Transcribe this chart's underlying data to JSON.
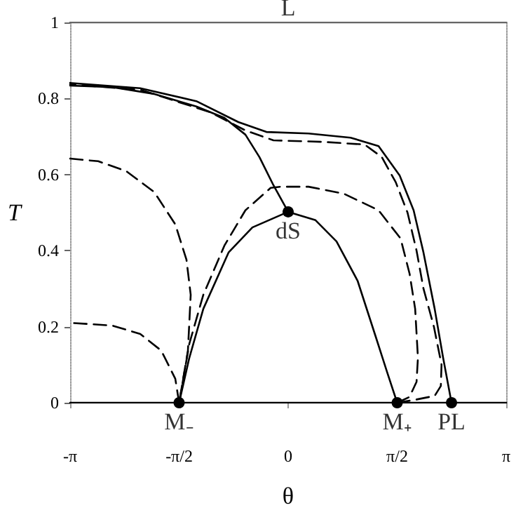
{
  "chart_data": {
    "type": "line",
    "xlabel": "θ",
    "ylabel": "T",
    "xlim": [
      -3.1416,
      3.1416
    ],
    "ylim": [
      0,
      1
    ],
    "xticks": [
      {
        "value": -3.1416,
        "label": "-π"
      },
      {
        "value": -1.5708,
        "label": "-π/2"
      },
      0,
      {
        "value": 1.5708,
        "label": "π/2"
      },
      {
        "value": 3.1416,
        "label": "π"
      }
    ],
    "yticks": [
      0,
      0.2,
      0.4,
      0.6,
      0.8,
      1
    ],
    "grid": false,
    "marker": "none",
    "line_style": "solid",
    "series": [
      {
        "color": "#666666",
        "x": [
          -3.1416,
          3.1416
        ],
        "values": [
          1,
          1
        ]
      },
      {
        "color": "#000000",
        "x": [
          -3.1416,
          3.1416
        ],
        "values": [
          0,
          0
        ]
      },
      {
        "color": "#000000",
        "x": [
          -1.571,
          -1.424,
          -1.222,
          -0.859,
          -0.515,
          0,
          0.394,
          0.697,
          1.0,
          1.263,
          1.425,
          1.571
        ],
        "values": [
          0,
          0.118,
          0.247,
          0.395,
          0.461,
          0.502,
          0.48,
          0.424,
          0.321,
          0.173,
          0.081,
          0
        ]
      },
      {
        "color": "#000000",
        "x": [
          -3.1416,
          -2.535,
          -1.929,
          -1.323,
          -0.919,
          -0.616,
          -0.414,
          -0.212,
          0
        ],
        "values": [
          0.834,
          0.83,
          0.812,
          0.779,
          0.749,
          0.705,
          0.646,
          0.572,
          0.502
        ]
      },
      {
        "color": "#000000",
        "x": [
          -3.1416,
          -2.131,
          -1.323,
          -0.717,
          -0.313,
          0.293,
          0.899,
          1.303,
          1.606,
          1.808,
          1.95,
          2.111,
          2.233,
          2.354
        ],
        "values": [
          0.841,
          0.827,
          0.793,
          0.738,
          0.712,
          0.708,
          0.697,
          0.675,
          0.598,
          0.506,
          0.395,
          0.247,
          0.118,
          0
        ]
      },
      {
        "color": "#000000",
        "line_style": "dashed",
        "x": [
          1.571,
          1.808,
          2.111,
          2.2,
          2.21,
          2.1,
          1.95,
          1.85,
          1.72,
          1.55,
          1.35,
          1.101,
          0.495,
          -0.212,
          -0.616,
          -1.121,
          -2.131,
          -3.1416
        ],
        "values": [
          0,
          0.007,
          0.018,
          0.044,
          0.1,
          0.2,
          0.3,
          0.4,
          0.5,
          0.58,
          0.646,
          0.679,
          0.686,
          0.69,
          0.716,
          0.764,
          0.823,
          0.837
        ]
      },
      {
        "color": "#000000",
        "line_style": "dashed",
        "x": [
          1.571,
          1.748,
          1.85,
          1.87,
          1.83,
          1.75,
          1.62,
          1.303,
          0.798,
          0.293,
          -0.111,
          -0.252,
          -0.616,
          -0.919,
          -1.222,
          -1.424,
          -1.571
        ],
        "values": [
          0,
          0.015,
          0.055,
          0.118,
          0.247,
          0.339,
          0.432,
          0.506,
          0.55,
          0.568,
          0.568,
          0.565,
          0.506,
          0.413,
          0.284,
          0.155,
          0
        ]
      },
      {
        "color": "#000000",
        "line_style": "dashed",
        "x": [
          -3.1416,
          -2.737,
          -2.333,
          -1.929,
          -1.626,
          -1.465,
          -1.404,
          -1.444,
          -1.571
        ],
        "values": [
          0.642,
          0.635,
          0.609,
          0.554,
          0.469,
          0.376,
          0.284,
          0.137,
          0
        ]
      },
      {
        "color": "#000000",
        "line_style": "dashed",
        "x": [
          -1.571,
          -1.626,
          -1.828,
          -2.131,
          -2.535,
          -3.1416
        ],
        "values": [
          0,
          0.063,
          0.137,
          0.181,
          0.203,
          0.21
        ]
      },
      {
        "type": "scatter",
        "marker": "circle",
        "color": "#000000",
        "x": [
          -1.571,
          0,
          1.571,
          2.354
        ],
        "values": [
          0,
          0.502,
          0,
          0
        ]
      }
    ],
    "annotations": [
      {
        "text": "L",
        "x": 0,
        "y": 1
      },
      {
        "text": "dS",
        "x": 0,
        "y": 0.502
      },
      {
        "text": "M₋",
        "x": -1.571,
        "y": 0
      },
      {
        "text": "M₊",
        "x": 1.571,
        "y": 0
      },
      {
        "text": "PL",
        "x": 2.354,
        "y": 0
      }
    ]
  }
}
